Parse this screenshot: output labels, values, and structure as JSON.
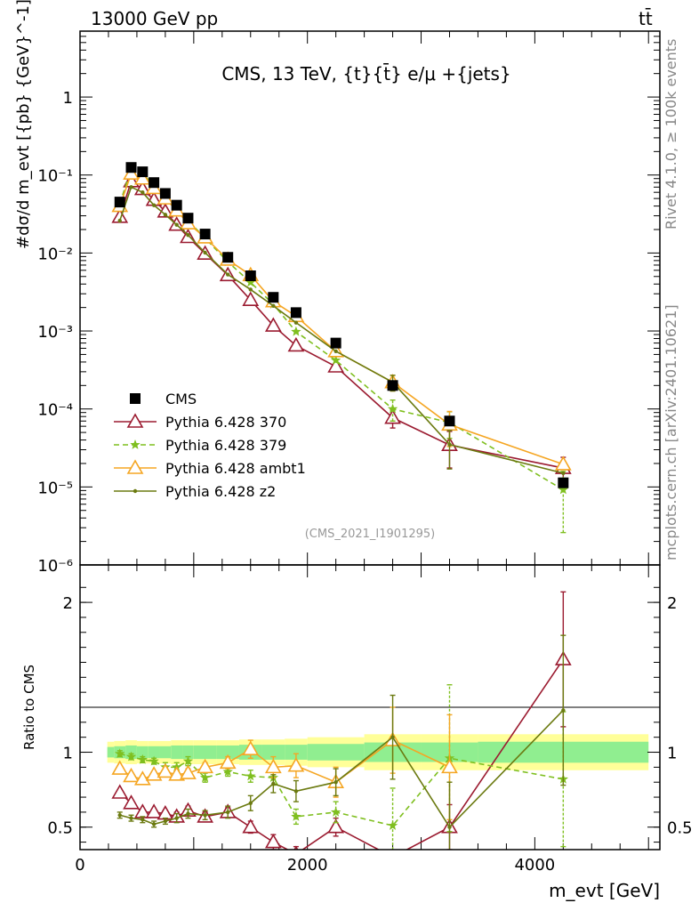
{
  "header": {
    "left": "13000 GeV pp",
    "right": "tt̄"
  },
  "side_labels": {
    "rivet": "Rivet 4.1.0, ≥ 100k events",
    "mcplots": "mcplots.cern.ch [arXiv:2401.10621]"
  },
  "colors": {
    "cms": "#000000",
    "p370": "#9b1b30",
    "p379": "#7fbf1f",
    "ambt1": "#f5a623",
    "z2": "#6b7a10",
    "band_inner": "#90ee90",
    "band_outer": "#ffff99"
  },
  "chart_data": [
    {
      "type": "scatter",
      "panel": "main",
      "title": "CMS, 13 TeV, {t}{t̄} e/μ +{jets}",
      "ylabel": "#dσ/d m_evt [{pb} {GeV}^-1]",
      "xlabel": "",
      "xlim": [
        0,
        5100
      ],
      "ylim": [
        1e-06,
        7
      ],
      "yscale": "log",
      "yticks": [
        {
          "value": 1,
          "label": "1"
        },
        {
          "value": 0.1,
          "label": "10⁻¹"
        },
        {
          "value": 0.01,
          "label": "10⁻²"
        },
        {
          "value": 0.001,
          "label": "10⁻³"
        },
        {
          "value": 0.0001,
          "label": "10⁻⁴"
        },
        {
          "value": 1e-05,
          "label": "10⁻⁵"
        },
        {
          "value": 1e-06,
          "label": "10⁻⁶"
        }
      ],
      "watermark": "(CMS_2021_I1901295)",
      "x": [
        350,
        450,
        550,
        650,
        750,
        850,
        950,
        1100,
        1300,
        1500,
        1700,
        1900,
        2250,
        2750,
        3250,
        4250
      ],
      "series": [
        {
          "name": "CMS",
          "key": "cms",
          "marker": "square",
          "values": [
            0.045,
            0.125,
            0.11,
            0.08,
            0.058,
            0.041,
            0.028,
            0.0175,
            0.0088,
            0.0051,
            0.0027,
            0.00172,
            0.0007,
            0.0002,
            7e-05,
            1.13e-05
          ]
        },
        {
          "name": "Pythia 6.428 370",
          "key": "p370",
          "marker": "triangle",
          "values": [
            0.029,
            0.083,
            0.066,
            0.048,
            0.034,
            0.023,
            0.016,
            0.0098,
            0.0052,
            0.0025,
            0.00117,
            0.00065,
            0.00035,
            7.7e-05,
            3.45e-05,
            1.75e-05
          ],
          "errors": [
            0,
            0,
            0,
            0,
            0,
            0,
            0,
            0,
            0,
            0,
            0,
            0,
            0,
            2e-05,
            1.7e-05,
            6.5e-06
          ]
        },
        {
          "name": "Pythia 6.428 379",
          "key": "p379",
          "marker": "star",
          "dashed": true,
          "values": [
            0.043,
            0.12,
            0.103,
            0.075,
            0.052,
            0.037,
            0.026,
            0.0155,
            0.0077,
            0.0042,
            0.0022,
            0.00098,
            0.00042,
            0.0001,
            6.7e-05,
            9.2e-06
          ],
          "errors": [
            0,
            0,
            0,
            0,
            0,
            0,
            0,
            0,
            0,
            0,
            0,
            0,
            0,
            3e-05,
            2.5e-05,
            6.6e-06
          ]
        },
        {
          "name": "Pythia 6.428 ambt1",
          "key": "ambt1",
          "marker": "triangle",
          "values": [
            0.04,
            0.104,
            0.09,
            0.068,
            0.05,
            0.035,
            0.024,
            0.0158,
            0.0082,
            0.0052,
            0.0024,
            0.00155,
            0.00055,
            0.00022,
            6.3e-05,
            1.95e-05
          ],
          "errors": [
            0,
            0,
            0,
            0,
            0,
            0,
            0,
            0,
            0,
            0,
            0,
            0,
            0,
            5e-05,
            3e-05,
            0
          ]
        },
        {
          "name": "Pythia 6.428 z2",
          "key": "z2",
          "marker": "dot",
          "values": [
            0.026,
            0.07,
            0.06,
            0.041,
            0.031,
            0.023,
            0.017,
            0.0101,
            0.0053,
            0.0034,
            0.0021,
            0.00128,
            0.00055,
            0.00022,
            3.5e-05,
            1.5e-05
          ],
          "errors": [
            0,
            0,
            0,
            0,
            0,
            0,
            0,
            0,
            0,
            0,
            0,
            0,
            0,
            5e-05,
            1.8e-05,
            0
          ]
        }
      ]
    },
    {
      "type": "line",
      "panel": "ratio",
      "ylabel": "Ratio to CMS",
      "xlabel": "m_evt [GeV]",
      "xlim": [
        0,
        5100
      ],
      "ylim": [
        0.35,
        2.25
      ],
      "yticks": [
        {
          "value": 0.5,
          "label": "0.5"
        },
        {
          "value": 1,
          "label": "1"
        },
        {
          "value": 2,
          "label": "2"
        }
      ],
      "xticks": [
        {
          "value": 0,
          "label": "0"
        },
        {
          "value": 2000,
          "label": "2000"
        },
        {
          "value": 4000,
          "label": "4000"
        }
      ],
      "x": [
        350,
        450,
        550,
        650,
        750,
        850,
        950,
        1100,
        1300,
        1500,
        1700,
        1900,
        2250,
        2750,
        3250,
        4250
      ],
      "bands": {
        "edges": [
          240,
          300,
          400,
          500,
          600,
          700,
          800,
          900,
          1000,
          1200,
          1400,
          1600,
          1800,
          2000,
          2500,
          3000,
          3500,
          5000
        ],
        "inner": [
          0.035,
          0.04,
          0.045,
          0.04,
          0.04,
          0.04,
          0.045,
          0.045,
          0.045,
          0.045,
          0.05,
          0.05,
          0.05,
          0.055,
          0.065,
          0.065,
          0.07
        ],
        "outer": [
          0.07,
          0.075,
          0.08,
          0.075,
          0.075,
          0.075,
          0.08,
          0.08,
          0.08,
          0.08,
          0.085,
          0.085,
          0.09,
          0.1,
          0.12,
          0.12,
          0.12
        ]
      },
      "series": [
        {
          "name": "Pythia 6.428 370",
          "key": "p370",
          "marker": "triangle",
          "values": [
            0.73,
            0.66,
            0.6,
            0.6,
            0.59,
            0.57,
            0.61,
            0.57,
            0.6,
            0.5,
            0.4,
            0.32,
            0.5,
            0.3,
            0.5,
            1.62
          ],
          "errors": [
            0.01,
            0.01,
            0.01,
            0.02,
            0.02,
            0.03,
            0.03,
            0.03,
            0.03,
            0.04,
            0.05,
            0.05,
            0.06,
            0,
            0.15,
            0.45
          ]
        },
        {
          "name": "Pythia 6.428 379",
          "key": "p379",
          "marker": "star",
          "dashed": true,
          "values": [
            0.99,
            0.97,
            0.95,
            0.94,
            0.9,
            0.9,
            0.94,
            0.83,
            0.87,
            0.84,
            0.83,
            0.57,
            0.6,
            0.51,
            0.96,
            0.82
          ],
          "errors": [
            0.02,
            0.02,
            0.02,
            0.02,
            0.03,
            0.03,
            0.03,
            0.03,
            0.03,
            0.04,
            0.05,
            0.05,
            0.07,
            0.25,
            0.49,
            0.45
          ]
        },
        {
          "name": "Pythia 6.428 ambt1",
          "key": "ambt1",
          "marker": "triangle",
          "values": [
            0.89,
            0.84,
            0.82,
            0.85,
            0.87,
            0.85,
            0.86,
            0.9,
            0.93,
            1.02,
            0.9,
            0.91,
            0.8,
            1.08,
            0.9,
            null
          ],
          "errors": [
            0.02,
            0.02,
            0.02,
            0.02,
            0.03,
            0.03,
            0.03,
            0.03,
            0.04,
            0.06,
            0.07,
            0.08,
            0.1,
            0.22,
            0.35,
            0
          ]
        },
        {
          "name": "Pythia 6.428 z2",
          "key": "z2",
          "marker": "dot",
          "values": [
            0.58,
            0.56,
            0.55,
            0.52,
            0.54,
            0.56,
            0.59,
            0.58,
            0.6,
            0.66,
            0.79,
            0.74,
            0.8,
            1.1,
            0.5,
            1.28
          ],
          "errors": [
            0.02,
            0.02,
            0.02,
            0.02,
            0.02,
            0.03,
            0.03,
            0.03,
            0.04,
            0.05,
            0.06,
            0.07,
            0.09,
            0.28,
            0.3,
            0.5
          ]
        }
      ]
    }
  ]
}
